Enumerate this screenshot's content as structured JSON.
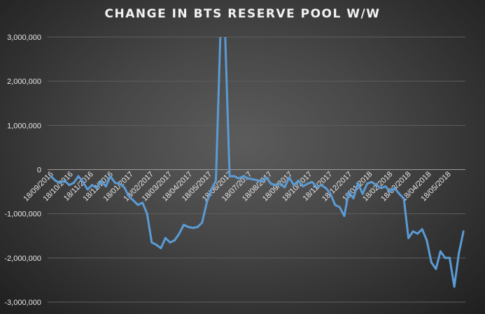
{
  "chart_data": {
    "type": "line",
    "title": "CHANGE IN BTS RESERVE POOL W/W",
    "xlabel": "",
    "ylabel": "",
    "ylim": [
      -3000000,
      3000000
    ],
    "y_ticks": [
      "3,000,000",
      "2,000,000",
      "1,000,000",
      "0",
      "-1,000,000",
      "-2,000,000",
      "-3,000,000"
    ],
    "x_tick_labels": [
      "18/09/2016",
      "18/10/2016",
      "18/11/2016",
      "18/12/2016",
      "18/01/2017",
      "18/02/2017",
      "18/03/2017",
      "18/04/2017",
      "18/05/2017",
      "18/06/2017",
      "18/07/2017",
      "18/08/2017",
      "18/09/2017",
      "18/10/2017",
      "18/11/2017",
      "18/12/2017",
      "18/01/2018",
      "18/02/2018",
      "18/03/2018",
      "18/04/2018",
      "18/05/2018"
    ],
    "grid": true,
    "line_color": "#5b9bd5",
    "series": [
      {
        "x": [
          "2016-09-18",
          "2016-09-25",
          "2016-10-02",
          "2016-10-09",
          "2016-10-16",
          "2016-10-23",
          "2016-10-30",
          "2016-11-06",
          "2016-11-13",
          "2016-11-20",
          "2016-11-27",
          "2016-12-04",
          "2016-12-11",
          "2016-12-18",
          "2016-12-25",
          "2017-01-01",
          "2017-01-08",
          "2017-01-15",
          "2017-01-22",
          "2017-01-29",
          "2017-02-05",
          "2017-02-12",
          "2017-02-19",
          "2017-02-26",
          "2017-03-05",
          "2017-03-12",
          "2017-03-19",
          "2017-03-26",
          "2017-04-02",
          "2017-04-09",
          "2017-04-16",
          "2017-04-23",
          "2017-04-30",
          "2017-05-07",
          "2017-05-14",
          "2017-05-21",
          "2017-05-28",
          "2017-06-04",
          "2017-06-11",
          "2017-06-18",
          "2017-06-25",
          "2017-07-02",
          "2017-07-09",
          "2017-07-16",
          "2017-07-23",
          "2017-07-30",
          "2017-08-06",
          "2017-08-13",
          "2017-08-20",
          "2017-08-27",
          "2017-09-03",
          "2017-09-10",
          "2017-09-17",
          "2017-09-24",
          "2017-10-01",
          "2017-10-08",
          "2017-10-15",
          "2017-10-22",
          "2017-10-29",
          "2017-11-05",
          "2017-11-12",
          "2017-11-19",
          "2017-11-26",
          "2017-12-03",
          "2017-12-10",
          "2017-12-17",
          "2017-12-24",
          "2017-12-31",
          "2018-01-07",
          "2018-01-14",
          "2018-01-21",
          "2018-01-28",
          "2018-02-04",
          "2018-02-11",
          "2018-02-18",
          "2018-02-25",
          "2018-03-04",
          "2018-03-11",
          "2018-03-18",
          "2018-03-25",
          "2018-04-01",
          "2018-04-08",
          "2018-04-15",
          "2018-04-22",
          "2018-04-29",
          "2018-05-06",
          "2018-05-13",
          "2018-05-20",
          "2018-05-27",
          "2018-06-03",
          "2018-06-10"
        ],
        "values": [
          -150000,
          -250000,
          -300000,
          -250000,
          -350000,
          -300000,
          -150000,
          -280000,
          -450000,
          -350000,
          -420000,
          -260000,
          -380000,
          -150000,
          -300000,
          -320000,
          -400000,
          -600000,
          -700000,
          -800000,
          -750000,
          -1000000,
          -1650000,
          -1700000,
          -1780000,
          -1550000,
          -1650000,
          -1600000,
          -1450000,
          -1250000,
          -1300000,
          -1320000,
          -1300000,
          -1200000,
          -750000,
          -450000,
          -250000,
          3100000,
          3100000,
          -150000,
          -150000,
          -200000,
          -150000,
          -200000,
          -220000,
          -240000,
          -270000,
          -180000,
          -320000,
          -350000,
          -320000,
          -400000,
          -180000,
          -350000,
          -250000,
          -380000,
          -320000,
          -280000,
          -400000,
          -350000,
          -420000,
          -550000,
          -800000,
          -850000,
          -1050000,
          -500000,
          -650000,
          -300000,
          -550000,
          -320000,
          -280000,
          -350000,
          -420000,
          -380000,
          -500000,
          -420000,
          -550000,
          -650000,
          -1550000,
          -1400000,
          -1450000,
          -1350000,
          -1600000,
          -2100000,
          -2250000,
          -1850000,
          -2000000,
          -2000000,
          -2650000,
          -1900000,
          -1400000
        ]
      }
    ]
  }
}
